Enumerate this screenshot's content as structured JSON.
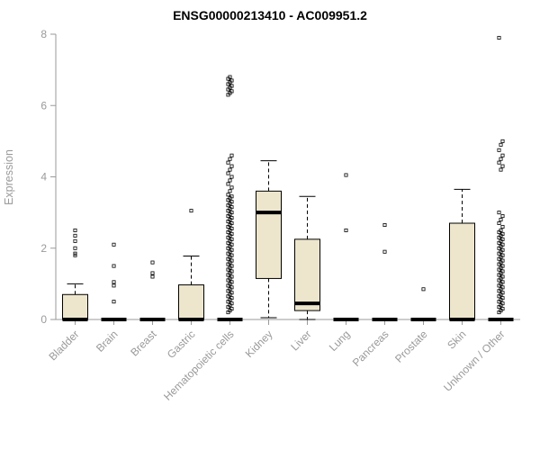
{
  "chart_data": {
    "type": "boxplot",
    "title": "ENSG00000213410 - AC009951.2",
    "ylabel": "Expression",
    "ylim": [
      0,
      8
    ],
    "yticks": [
      0,
      2,
      4,
      6,
      8
    ],
    "grid": false,
    "legend": "none",
    "box_fill": "#EDE6CD",
    "box_stroke": "#000000",
    "axis_color": "#9a9a9a",
    "categories": [
      "Bladder",
      "Brain",
      "Breast",
      "Gastric",
      "Hematopoietic cells",
      "Kidney",
      "Liver",
      "Lung",
      "Pancreas",
      "Prostate",
      "Skin",
      "Unknown / Other"
    ],
    "boxes": [
      {
        "category": "Bladder",
        "whisker_low": 0,
        "q1": 0,
        "median": 0,
        "q3": 0.7,
        "whisker_high": 1.0,
        "outliers": [
          1.8,
          1.85,
          2.0,
          2.2,
          2.35,
          2.5
        ]
      },
      {
        "category": "Brain",
        "whisker_low": 0,
        "q1": 0,
        "median": 0,
        "q3": 0,
        "whisker_high": 0,
        "outliers": [
          0.5,
          0.95,
          1.05,
          1.5,
          2.1
        ]
      },
      {
        "category": "Breast",
        "whisker_low": 0,
        "q1": 0,
        "median": 0,
        "q3": 0,
        "whisker_high": 0,
        "outliers": [
          1.2,
          1.3,
          1.6
        ]
      },
      {
        "category": "Gastric",
        "whisker_low": 0,
        "q1": 0,
        "median": 0,
        "q3": 0.97,
        "whisker_high": 1.78,
        "outliers": [
          3.05
        ]
      },
      {
        "category": "Hematopoietic cells",
        "whisker_low": 0,
        "q1": 0,
        "median": 0,
        "q3": 0,
        "whisker_high": 0,
        "outliers": [
          0.2,
          0.25,
          0.3,
          0.35,
          0.4,
          0.45,
          0.5,
          0.55,
          0.6,
          0.65,
          0.7,
          0.75,
          0.8,
          0.85,
          0.9,
          0.95,
          1.0,
          1.05,
          1.1,
          1.15,
          1.2,
          1.25,
          1.3,
          1.35,
          1.4,
          1.45,
          1.5,
          1.55,
          1.6,
          1.65,
          1.7,
          1.75,
          1.8,
          1.85,
          1.9,
          1.95,
          2.0,
          2.05,
          2.1,
          2.15,
          2.2,
          2.25,
          2.3,
          2.35,
          2.4,
          2.45,
          2.5,
          2.55,
          2.6,
          2.65,
          2.7,
          2.75,
          2.8,
          2.85,
          2.9,
          2.95,
          3.0,
          3.05,
          3.1,
          3.15,
          3.2,
          3.25,
          3.3,
          3.35,
          3.4,
          3.45,
          3.5,
          3.6,
          3.7,
          3.8,
          3.9,
          4.0,
          4.1,
          4.2,
          4.3,
          4.4,
          4.5,
          4.6,
          6.3,
          6.35,
          6.4,
          6.45,
          6.5,
          6.55,
          6.6,
          6.65,
          6.7,
          6.75,
          6.8
        ]
      },
      {
        "category": "Kidney",
        "whisker_low": 0.05,
        "q1": 1.15,
        "median": 3.0,
        "q3": 3.6,
        "whisker_high": 4.45,
        "outliers": []
      },
      {
        "category": "Liver",
        "whisker_low": 0.0,
        "q1": 0.25,
        "median": 0.45,
        "q3": 2.25,
        "whisker_high": 3.45,
        "outliers": []
      },
      {
        "category": "Lung",
        "whisker_low": 0,
        "q1": 0,
        "median": 0,
        "q3": 0,
        "whisker_high": 0,
        "outliers": [
          2.5,
          4.05
        ]
      },
      {
        "category": "Pancreas",
        "whisker_low": 0,
        "q1": 0,
        "median": 0,
        "q3": 0,
        "whisker_high": 0,
        "outliers": [
          1.9,
          2.65
        ]
      },
      {
        "category": "Prostate",
        "whisker_low": 0,
        "q1": 0,
        "median": 0,
        "q3": 0,
        "whisker_high": 0,
        "outliers": [
          0.85
        ]
      },
      {
        "category": "Skin",
        "whisker_low": 0,
        "q1": 0,
        "median": 0,
        "q3": 2.7,
        "whisker_high": 3.65,
        "outliers": []
      },
      {
        "category": "Unknown / Other",
        "whisker_low": 0,
        "q1": 0,
        "median": 0,
        "q3": 0,
        "whisker_high": 0,
        "outliers": [
          0.2,
          0.25,
          0.3,
          0.35,
          0.4,
          0.45,
          0.5,
          0.55,
          0.6,
          0.65,
          0.7,
          0.75,
          0.8,
          0.85,
          0.9,
          0.95,
          1.0,
          1.05,
          1.1,
          1.15,
          1.2,
          1.25,
          1.3,
          1.35,
          1.4,
          1.45,
          1.5,
          1.55,
          1.6,
          1.65,
          1.7,
          1.75,
          1.8,
          1.85,
          1.9,
          1.95,
          2.0,
          2.05,
          2.1,
          2.15,
          2.2,
          2.25,
          2.3,
          2.35,
          2.4,
          2.45,
          2.5,
          2.6,
          2.7,
          2.8,
          2.9,
          3.0,
          4.2,
          4.3,
          4.4,
          4.5,
          4.6,
          4.75,
          4.9,
          5.0,
          7.9
        ]
      }
    ]
  }
}
